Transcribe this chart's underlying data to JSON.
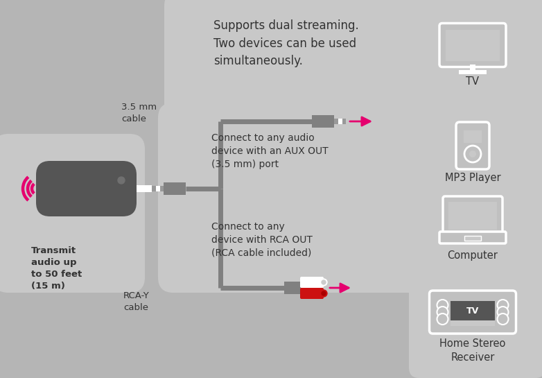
{
  "bg_color": "#b5b5b5",
  "bg_light": "#c8c8c8",
  "dark_gray": "#555555",
  "mid_gray": "#808080",
  "light_gray": "#b0b0b0",
  "icon_gray": "#c0c0c0",
  "white": "#ffffff",
  "pink": "#e5006e",
  "red": "#cc1111",
  "text_dark": "#333333",
  "title_text": "Supports dual streaming.\nTwo devices can be used\nsimultaneously.",
  "label_transmit": "Transmit\naudio up\nto 50 feet\n(15 m)",
  "label_35mm": "3.5 mm\ncable",
  "label_rcay": "RCA-Y\ncable",
  "label_aux": "Connect to any audio\ndevice with an AUX OUT\n(3.5 mm) port",
  "label_rca": "Connect to any\ndevice with RCA OUT\n(RCA cable included)",
  "label_tv_top": "TV",
  "label_mp3": "MP3 Player",
  "label_computer": "Computer",
  "label_tv_bottom": "TV",
  "label_home_stereo": "Home Stereo\nReceiver"
}
